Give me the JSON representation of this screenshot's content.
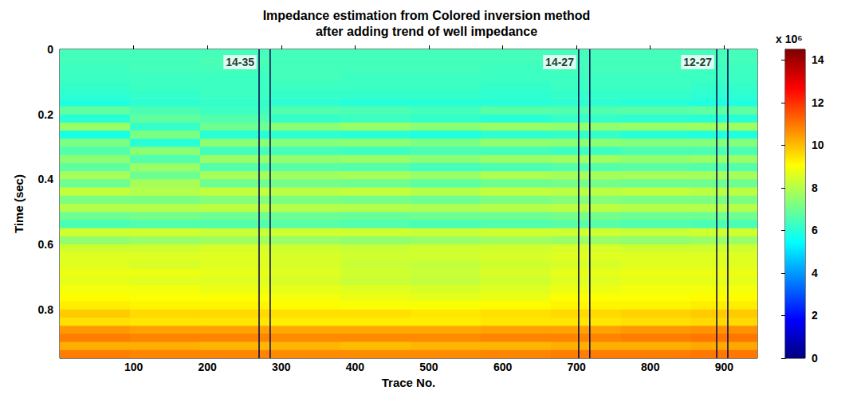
{
  "chart_data": {
    "type": "heatmap",
    "title": "Impedance estimation from Colored inversion method\nafter adding trend of well impedance",
    "x_label": "Trace No.",
    "y_label": "Time (sec)",
    "xlim": [
      0,
      945
    ],
    "xticks": [
      100,
      200,
      300,
      400,
      500,
      600,
      700,
      800,
      900
    ],
    "ylim": [
      0,
      0.95
    ],
    "yticks": [
      0,
      0.2,
      0.4,
      0.6,
      0.8
    ],
    "x_edges": [
      0,
      95,
      190,
      285,
      380,
      475,
      570,
      665,
      760,
      855,
      945
    ],
    "y_edges": [
      0,
      0.025,
      0.05,
      0.075,
      0.1,
      0.125,
      0.15,
      0.175,
      0.2,
      0.225,
      0.25,
      0.275,
      0.3,
      0.325,
      0.35,
      0.375,
      0.4,
      0.425,
      0.45,
      0.475,
      0.5,
      0.525,
      0.55,
      0.575,
      0.6,
      0.625,
      0.65,
      0.675,
      0.7,
      0.725,
      0.75,
      0.775,
      0.8,
      0.825,
      0.85,
      0.875,
      0.9,
      0.925,
      0.95
    ],
    "cells": [
      [
        6.4,
        6.4,
        6.4,
        6.4,
        6.4,
        6.4,
        6.4,
        6.4,
        6.4,
        6.4
      ],
      [
        6.4,
        6.4,
        6.5,
        6.4,
        6.4,
        6.4,
        6.4,
        6.4,
        6.4,
        6.4
      ],
      [
        6.3,
        6.4,
        6.4,
        6.4,
        6.4,
        6.4,
        6.3,
        6.4,
        6.4,
        6.3
      ],
      [
        6.3,
        6.3,
        6.3,
        6.4,
        6.3,
        6.3,
        6.3,
        6.3,
        6.3,
        6.3
      ],
      [
        6.2,
        6.3,
        6.3,
        6.3,
        6.3,
        6.3,
        6.2,
        6.3,
        6.3,
        6.2
      ],
      [
        6.1,
        6.2,
        6.3,
        6.2,
        6.2,
        6.2,
        6.1,
        6.2,
        6.2,
        6.1
      ],
      [
        5.9,
        6.1,
        6.2,
        6.1,
        6.0,
        6.0,
        6.0,
        6.1,
        6.0,
        5.9
      ],
      [
        6.8,
        6.5,
        6.3,
        6.6,
        6.5,
        6.4,
        6.7,
        6.6,
        6.7,
        6.8
      ],
      [
        6.0,
        6.8,
        6.6,
        6.2,
        6.3,
        6.2,
        6.0,
        6.2,
        6.1,
        6.0
      ],
      [
        7.6,
        6.2,
        7.0,
        7.4,
        7.6,
        7.4,
        7.6,
        7.5,
        7.6,
        7.7
      ],
      [
        5.8,
        7.2,
        6.0,
        6.1,
        6.0,
        5.9,
        6.1,
        6.2,
        6.0,
        5.9
      ],
      [
        7.2,
        6.0,
        7.4,
        7.3,
        7.4,
        7.2,
        7.5,
        7.4,
        7.3,
        7.3
      ],
      [
        6.6,
        7.4,
        6.4,
        6.4,
        6.3,
        6.5,
        6.4,
        6.3,
        6.5,
        6.5
      ],
      [
        7.4,
        6.6,
        7.6,
        7.5,
        7.6,
        7.4,
        7.6,
        7.7,
        7.5,
        7.6
      ],
      [
        6.8,
        7.6,
        6.6,
        6.7,
        6.6,
        6.4,
        6.5,
        6.6,
        6.7,
        6.6
      ],
      [
        7.8,
        7.0,
        7.8,
        7.7,
        7.8,
        7.6,
        7.9,
        7.8,
        7.8,
        7.8
      ],
      [
        7.0,
        7.8,
        7.0,
        7.1,
        7.0,
        6.8,
        7.0,
        7.1,
        7.0,
        7.0
      ],
      [
        8.2,
        8.0,
        8.2,
        8.1,
        8.2,
        8.0,
        8.2,
        8.1,
        8.2,
        8.1
      ],
      [
        7.2,
        7.2,
        7.3,
        7.2,
        7.1,
        7.0,
        7.2,
        7.3,
        7.2,
        7.2
      ],
      [
        8.0,
        8.0,
        8.1,
        8.0,
        8.0,
        7.9,
        8.0,
        8.1,
        8.0,
        8.0
      ],
      [
        7.0,
        7.1,
        7.0,
        7.0,
        6.9,
        7.0,
        7.0,
        7.1,
        7.0,
        7.0
      ],
      [
        6.5,
        6.6,
        6.6,
        6.7,
        6.6,
        6.5,
        6.6,
        6.7,
        6.6,
        6.5
      ],
      [
        8.4,
        8.4,
        8.3,
        8.4,
        8.4,
        8.3,
        8.4,
        8.4,
        8.3,
        8.4
      ],
      [
        7.5,
        7.6,
        7.7,
        7.6,
        7.5,
        7.6,
        7.7,
        7.6,
        7.5,
        7.6
      ],
      [
        8.4,
        8.4,
        8.5,
        8.4,
        8.3,
        8.4,
        8.4,
        8.5,
        8.4,
        8.4
      ],
      [
        8.6,
        8.6,
        8.6,
        8.5,
        8.4,
        8.4,
        8.5,
        8.6,
        8.6,
        8.6
      ],
      [
        8.6,
        8.5,
        8.6,
        8.5,
        8.3,
        8.2,
        8.4,
        8.5,
        8.6,
        8.6
      ],
      [
        8.8,
        8.8,
        8.7,
        8.6,
        8.4,
        8.3,
        8.5,
        8.7,
        8.8,
        8.8
      ],
      [
        8.7,
        8.6,
        8.6,
        8.5,
        8.3,
        8.2,
        8.4,
        8.6,
        8.7,
        8.7
      ],
      [
        8.9,
        8.9,
        8.8,
        8.7,
        8.6,
        8.5,
        8.6,
        8.8,
        8.9,
        8.9
      ],
      [
        9.1,
        9.0,
        9.0,
        8.9,
        8.8,
        8.7,
        8.8,
        9.0,
        9.0,
        9.1
      ],
      [
        9.3,
        9.2,
        9.2,
        9.1,
        9.0,
        9.0,
        9.1,
        9.2,
        9.2,
        9.3
      ],
      [
        9.8,
        9.6,
        9.6,
        9.5,
        9.5,
        9.4,
        9.5,
        9.6,
        9.7,
        9.8
      ],
      [
        9.5,
        9.4,
        9.4,
        9.3,
        9.3,
        9.3,
        9.4,
        9.4,
        9.5,
        9.6
      ],
      [
        10.5,
        10.4,
        10.4,
        10.3,
        10.3,
        10.3,
        10.4,
        10.4,
        10.5,
        10.6
      ],
      [
        10.9,
        10.8,
        10.8,
        10.7,
        10.7,
        10.7,
        10.8,
        10.8,
        10.9,
        11.0
      ],
      [
        10.2,
        10.2,
        10.1,
        10.1,
        10.0,
        10.1,
        10.1,
        10.2,
        10.2,
        10.3
      ],
      [
        10.9,
        10.8,
        10.8,
        10.7,
        10.7,
        10.7,
        10.8,
        10.9,
        10.9,
        11.0
      ]
    ],
    "colorbar": {
      "range": [
        0,
        14.5
      ],
      "ticks": [
        0,
        2,
        4,
        6,
        8,
        10,
        12,
        14
      ],
      "label": "x 10⁶"
    },
    "wells": [
      {
        "label": "14-35",
        "traces": [
          270,
          285
        ]
      },
      {
        "label": "14-27",
        "traces": [
          703,
          718
        ]
      },
      {
        "label": "12-27",
        "traces": [
          890,
          905
        ]
      }
    ]
  }
}
